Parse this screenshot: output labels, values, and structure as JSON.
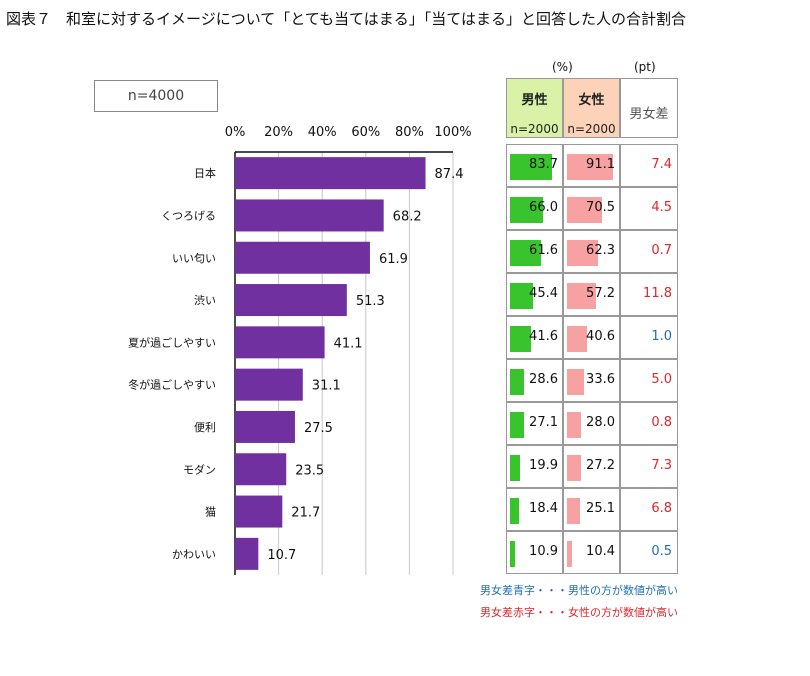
{
  "title": "図表７　和室に対するイメージについて「とても当てはまる」「当てはまる」と回答した人の合計割合",
  "sample_label": "n=4000",
  "chart_data": {
    "type": "bar",
    "orientation": "horizontal",
    "categories": [
      "日本",
      "くつろげる",
      "いい匂い",
      "渋い",
      "夏が過ごしやすい",
      "冬が過ごしやすい",
      "便利",
      "モダン",
      "猫",
      "かわいい"
    ],
    "values": [
      87.4,
      68.2,
      61.9,
      51.3,
      41.1,
      31.1,
      27.5,
      23.5,
      21.7,
      10.7
    ],
    "value_labels": [
      "87.4",
      "68.2",
      "61.9",
      "51.3",
      "41.1",
      "31.1",
      "27.5",
      "23.5",
      "21.7",
      "10.7"
    ],
    "xlim": [
      0,
      100
    ],
    "x_ticks": [
      "0%",
      "20%",
      "40%",
      "60%",
      "80%",
      "100%"
    ],
    "grid": true,
    "bar_color": "#7030a0"
  },
  "table": {
    "unit_pct": "(%)",
    "unit_pt": "(pt)",
    "male_header": "男性",
    "female_header": "女性",
    "diff_header": "男女差",
    "male_n": "n=2000",
    "female_n": "n=2000",
    "male_color": "#39c42e",
    "female_color": "#f7a1a3",
    "rows": [
      {
        "male": 83.7,
        "female": 91.1,
        "male_label": "83.7",
        "female_label": "91.1",
        "diff": "7.4",
        "diff_color": "#e2262b"
      },
      {
        "male": 66.0,
        "female": 70.5,
        "male_label": "66.0",
        "female_label": "70.5",
        "diff": "4.5",
        "diff_color": "#e2262b"
      },
      {
        "male": 61.6,
        "female": 62.3,
        "male_label": "61.6",
        "female_label": "62.3",
        "diff": "0.7",
        "diff_color": "#e2262b"
      },
      {
        "male": 45.4,
        "female": 57.2,
        "male_label": "45.4",
        "female_label": "57.2",
        "diff": "11.8",
        "diff_color": "#e2262b"
      },
      {
        "male": 41.6,
        "female": 40.6,
        "male_label": "41.6",
        "female_label": "40.6",
        "diff": "1.0",
        "diff_color": "#1e6fb8"
      },
      {
        "male": 28.6,
        "female": 33.6,
        "male_label": "28.6",
        "female_label": "33.6",
        "diff": "5.0",
        "diff_color": "#e2262b"
      },
      {
        "male": 27.1,
        "female": 28.0,
        "male_label": "27.1",
        "female_label": "28.0",
        "diff": "0.8",
        "diff_color": "#e2262b"
      },
      {
        "male": 19.9,
        "female": 27.2,
        "male_label": "19.9",
        "female_label": "27.2",
        "diff": "7.3",
        "diff_color": "#e2262b"
      },
      {
        "male": 18.4,
        "female": 25.1,
        "male_label": "18.4",
        "female_label": "25.1",
        "diff": "6.8",
        "diff_color": "#e2262b"
      },
      {
        "male": 10.9,
        "female": 10.4,
        "male_label": "10.9",
        "female_label": "10.4",
        "diff": "0.5",
        "diff_color": "#1e6fb8"
      }
    ]
  },
  "notes": {
    "blue": "男女差青字・・・男性の方が数値が高い",
    "red": "男女差赤字・・・女性の方が数値が高い"
  }
}
